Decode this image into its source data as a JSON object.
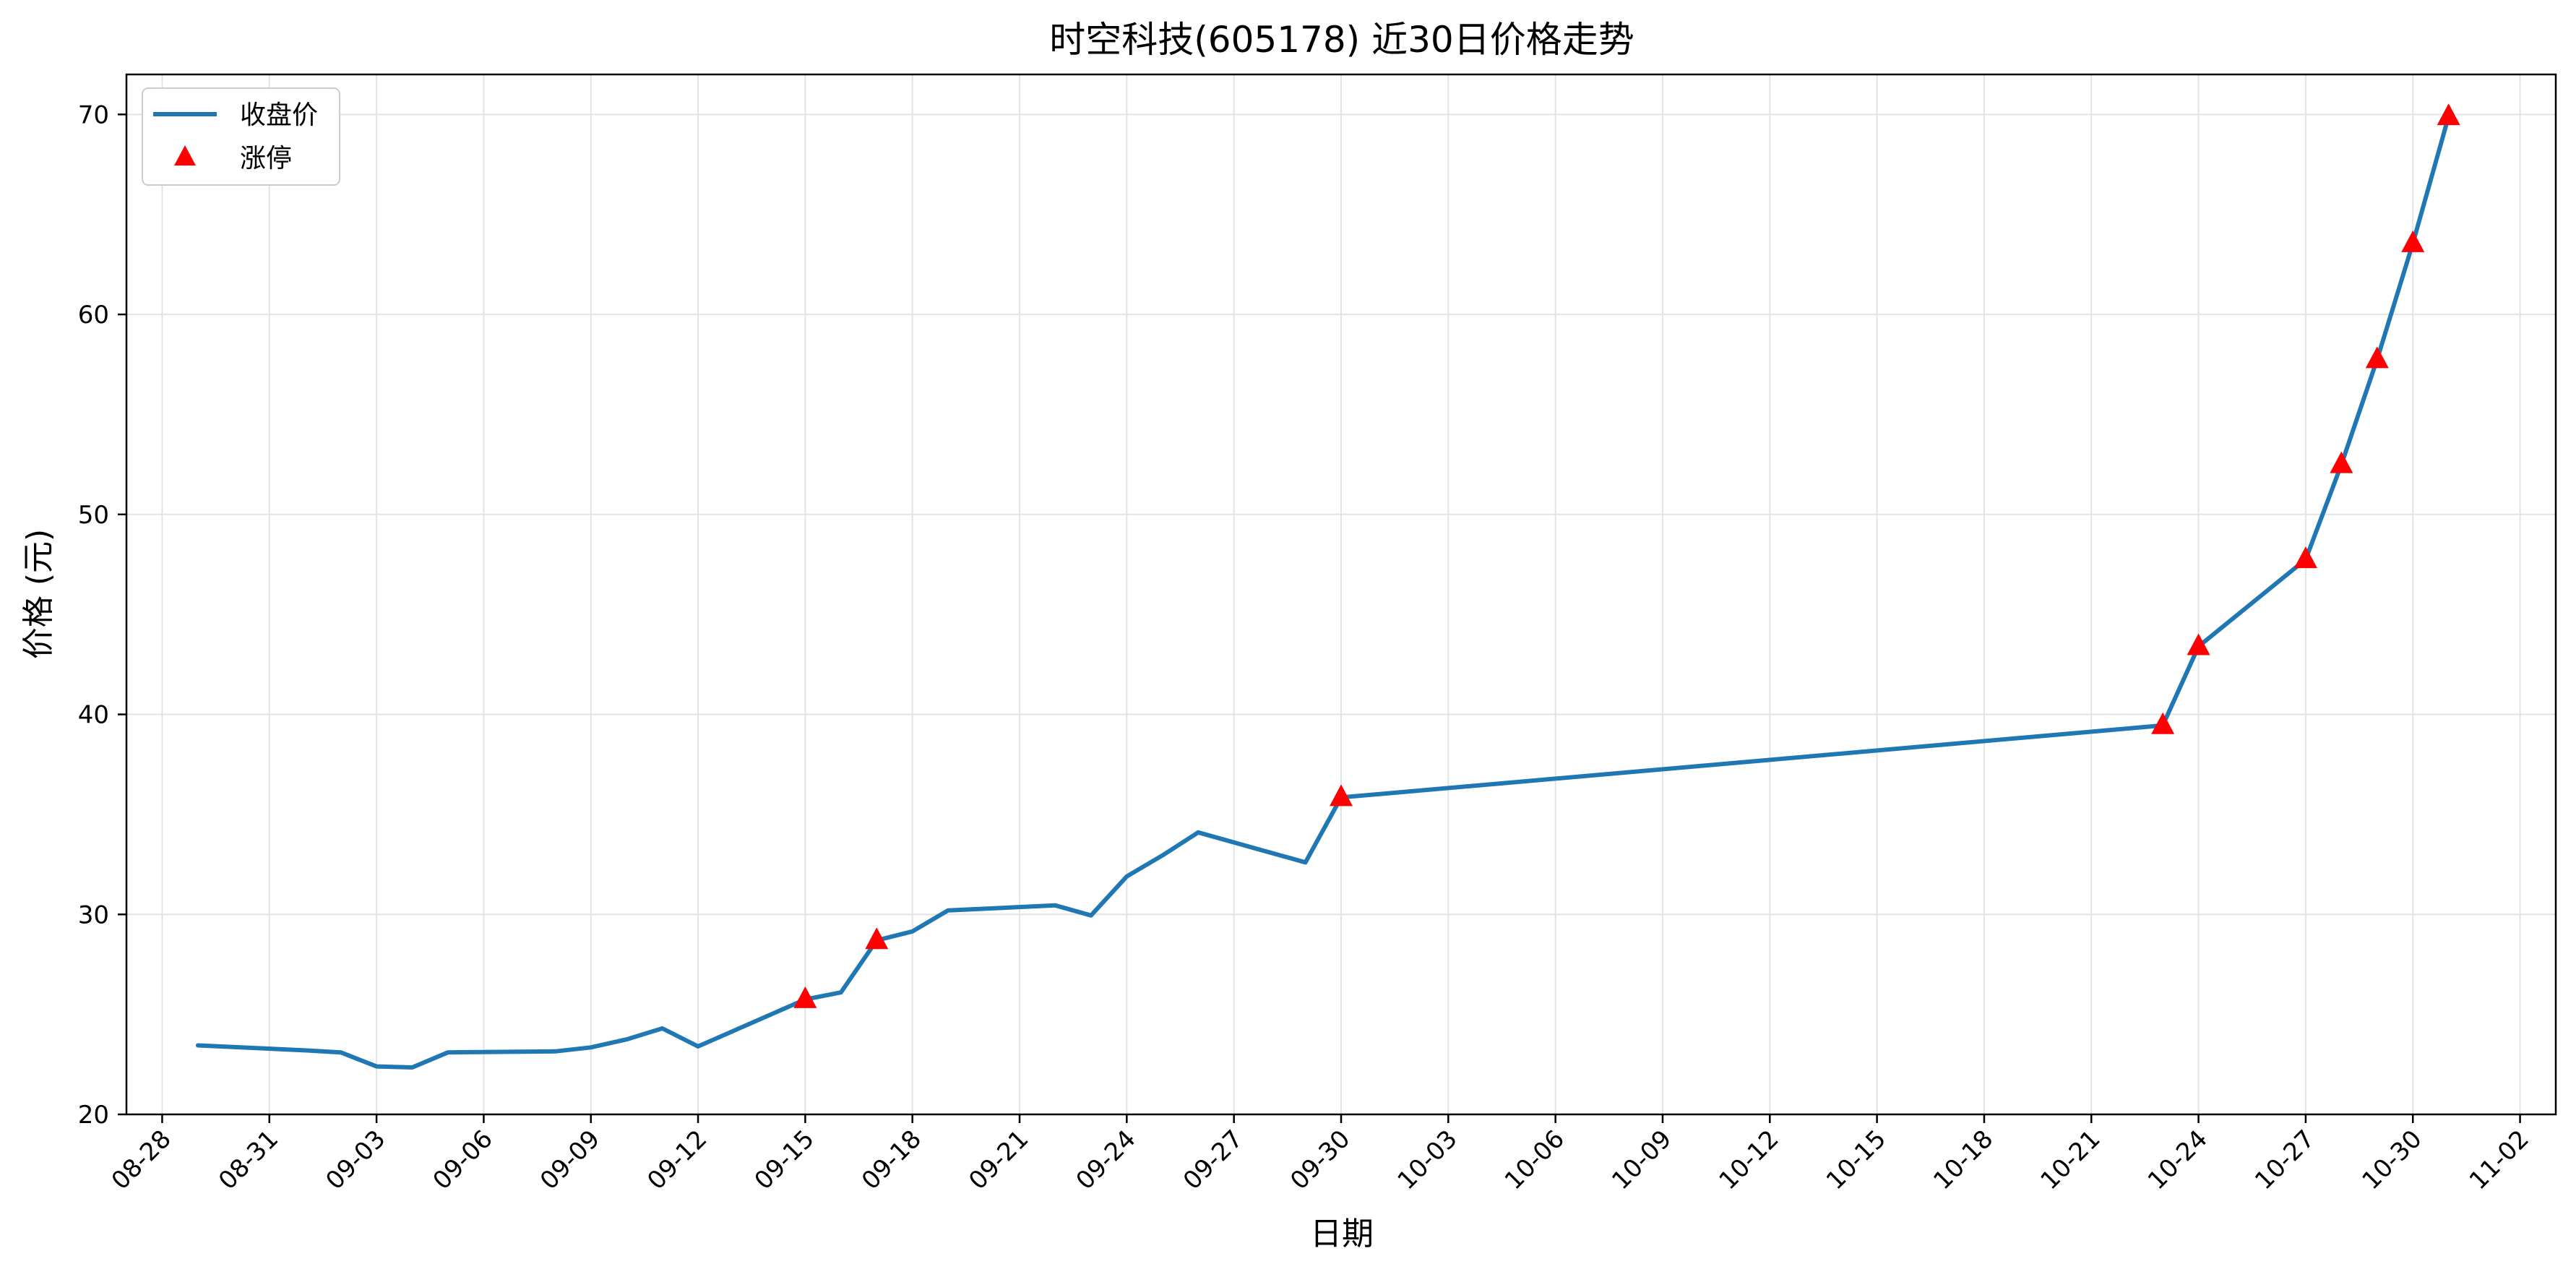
{
  "chart_data": {
    "type": "line",
    "title": "时空科技(605178) 近30日价格走势",
    "xlabel": "日期",
    "ylabel": "价格 (元)",
    "xlim": [
      "2025-08-27",
      "2025-11-03"
    ],
    "ylim": [
      20,
      72
    ],
    "xticks": [
      "08-28",
      "08-31",
      "09-03",
      "09-06",
      "09-09",
      "09-12",
      "09-15",
      "09-18",
      "09-21",
      "09-24",
      "09-27",
      "09-30",
      "10-03",
      "10-06",
      "10-09",
      "10-12",
      "10-15",
      "10-18",
      "10-21",
      "10-24",
      "10-27",
      "10-30",
      "11-02"
    ],
    "yticks": [
      20,
      30,
      40,
      50,
      60,
      70
    ],
    "grid": true,
    "legend_position": "top-left",
    "legend": [
      {
        "label": "收盘价",
        "type": "line",
        "color": "#1f77b4"
      },
      {
        "label": "涨停",
        "type": "marker",
        "marker": "triangle",
        "color": "#ff0000"
      }
    ],
    "series": [
      {
        "name": "收盘价",
        "color": "#1f77b4",
        "points": [
          [
            "2025-08-29",
            23.45
          ],
          [
            "2025-09-01",
            23.2
          ],
          [
            "2025-09-02",
            23.1
          ],
          [
            "2025-09-03",
            22.4
          ],
          [
            "2025-09-04",
            22.35
          ],
          [
            "2025-09-05",
            23.1
          ],
          [
            "2025-09-08",
            23.15
          ],
          [
            "2025-09-09",
            23.35
          ],
          [
            "2025-09-10",
            23.75
          ],
          [
            "2025-09-11",
            24.3
          ],
          [
            "2025-09-12",
            23.4
          ],
          [
            "2025-09-15",
            25.75
          ],
          [
            "2025-09-16",
            26.1
          ],
          [
            "2025-09-17",
            28.7
          ],
          [
            "2025-09-18",
            29.15
          ],
          [
            "2025-09-19",
            30.2
          ],
          [
            "2025-09-22",
            30.45
          ],
          [
            "2025-09-23",
            29.95
          ],
          [
            "2025-09-24",
            31.9
          ],
          [
            "2025-09-25",
            32.95
          ],
          [
            "2025-09-26",
            34.1
          ],
          [
            "2025-09-29",
            32.6
          ],
          [
            "2025-09-30",
            35.85
          ],
          [
            "2025-10-23",
            39.45
          ],
          [
            "2025-10-24",
            43.4
          ],
          [
            "2025-10-27",
            47.75
          ],
          [
            "2025-10-28",
            52.5
          ],
          [
            "2025-10-29",
            57.75
          ],
          [
            "2025-10-30",
            63.55
          ],
          [
            "2025-10-31",
            69.9
          ]
        ]
      },
      {
        "name": "涨停",
        "color": "#ff0000",
        "points": [
          [
            "2025-09-15",
            25.75
          ],
          [
            "2025-09-17",
            28.7
          ],
          [
            "2025-09-30",
            35.85
          ],
          [
            "2025-10-23",
            39.45
          ],
          [
            "2025-10-24",
            43.4
          ],
          [
            "2025-10-27",
            47.75
          ],
          [
            "2025-10-28",
            52.5
          ],
          [
            "2025-10-29",
            57.75
          ],
          [
            "2025-10-30",
            63.55
          ],
          [
            "2025-10-31",
            69.9
          ]
        ]
      }
    ]
  }
}
